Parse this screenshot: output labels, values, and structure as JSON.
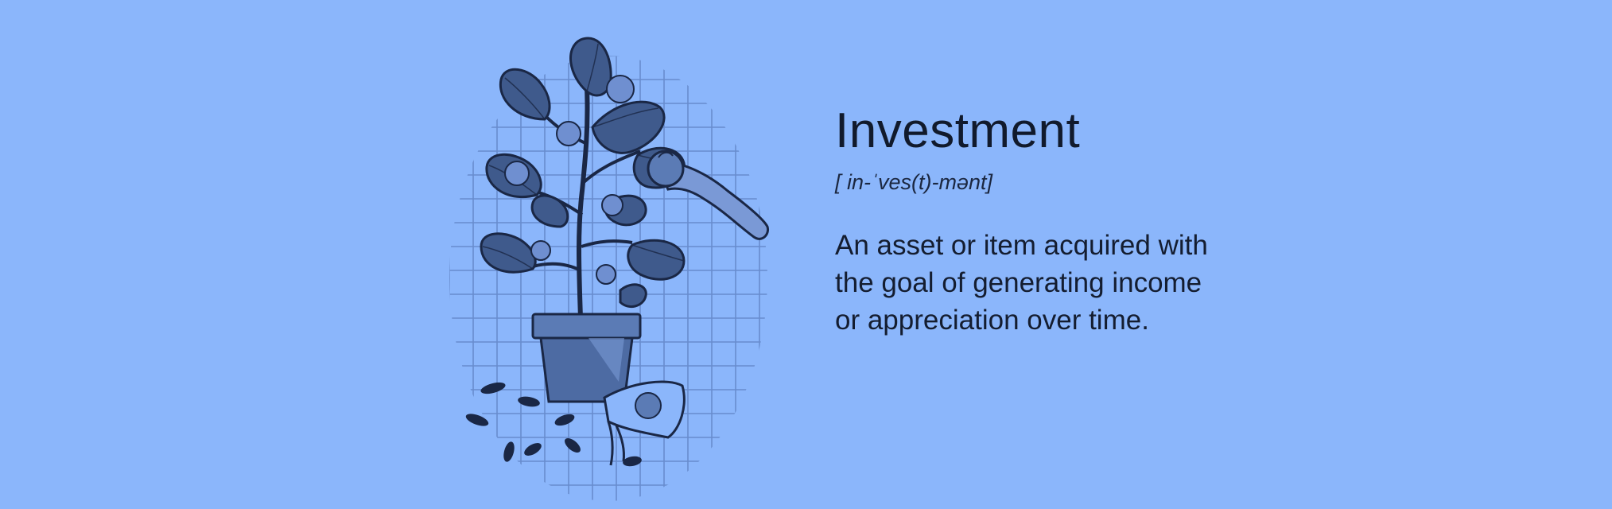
{
  "colors": {
    "background": "#8bb6fb",
    "ink": "#111a2c",
    "leaf": "#3f5a8c",
    "leaf_dark": "#1a2745",
    "pot": "#5b7bb5",
    "grid": "#5d7fbf"
  },
  "illustration": {
    "icon": "money-plant-illustration-icon"
  },
  "definition": {
    "term": "Investment",
    "pronunciation": "[ in-ˈves(t)-mənt]",
    "text": "An asset or item acquired with the goal of generating income or appreciation over time."
  }
}
